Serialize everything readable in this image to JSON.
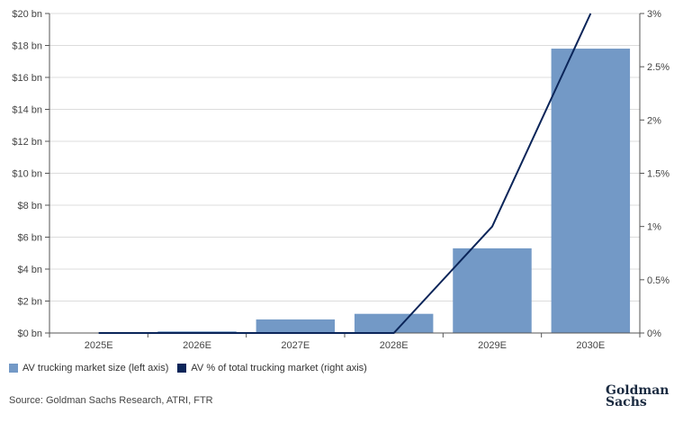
{
  "chart_data": {
    "type": "bar",
    "categories": [
      "2025E",
      "2026E",
      "2027E",
      "2028E",
      "2029E",
      "2030E"
    ],
    "series": [
      {
        "name": "AV trucking market size (left axis)",
        "type": "bar",
        "axis": "left",
        "values": [
          0.02,
          0.1,
          0.85,
          1.2,
          5.3,
          17.8
        ],
        "color": "#7399c6"
      },
      {
        "name": "AV % of total trucking market (right axis)",
        "type": "line",
        "axis": "right",
        "values": [
          0,
          0,
          0,
          0,
          1.0,
          3.0
        ],
        "color": "#0b2559"
      }
    ],
    "left_axis": {
      "ylim": [
        0,
        20
      ],
      "tick_labels": [
        "$0 bn",
        "$2 bn",
        "$4 bn",
        "$6 bn",
        "$8 bn",
        "$10 bn",
        "$12 bn",
        "$14 bn",
        "$16 bn",
        "$18 bn",
        "$20 bn"
      ]
    },
    "right_axis": {
      "ylim": [
        0,
        3
      ],
      "tick_labels": [
        "0%",
        "0.5%",
        "1%",
        "1.5%",
        "2%",
        "2.5%",
        "3%"
      ]
    },
    "grid": "horizontal",
    "legend_position": "bottom-left"
  },
  "legend": {
    "bar_label": "AV trucking market size (left axis)",
    "line_label": "AV % of total trucking market (right axis)"
  },
  "source": "Source: Goldman Sachs Research, ATRI, FTR",
  "logo": {
    "line1": "Goldman",
    "line2": "Sachs"
  }
}
